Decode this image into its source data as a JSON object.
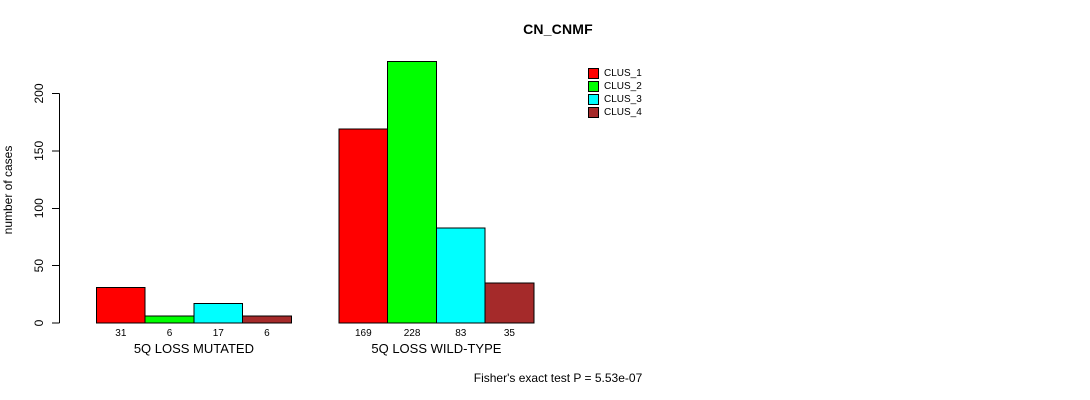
{
  "background_color": "#ffffff",
  "chart_data": {
    "type": "bar",
    "title": "CN_CNMF",
    "xlabel": "",
    "ylabel": "number of cases",
    "groups": [
      "5Q LOSS MUTATED",
      "5Q LOSS WILD-TYPE"
    ],
    "series": [
      {
        "name": "CLUS_1",
        "color": "#FF0000",
        "values": [
          31,
          169
        ]
      },
      {
        "name": "CLUS_2",
        "color": "#00FF00",
        "values": [
          6,
          228
        ]
      },
      {
        "name": "CLUS_3",
        "color": "#00FFFF",
        "values": [
          17,
          83
        ]
      },
      {
        "name": "CLUS_4",
        "color": "#A52A2A",
        "values": [
          6,
          35
        ]
      }
    ],
    "bar_value_labels": [
      [
        31,
        6,
        17,
        6
      ],
      [
        169,
        228,
        83,
        35
      ]
    ],
    "yticks": [
      0,
      50,
      100,
      150,
      200
    ],
    "ylim": [
      0,
      230
    ],
    "grid": false,
    "legend_position": "top-right",
    "bar_border_color": "#000000"
  },
  "annotation": {
    "fisher_text": "Fisher's exact test P = 5.53e-07"
  }
}
